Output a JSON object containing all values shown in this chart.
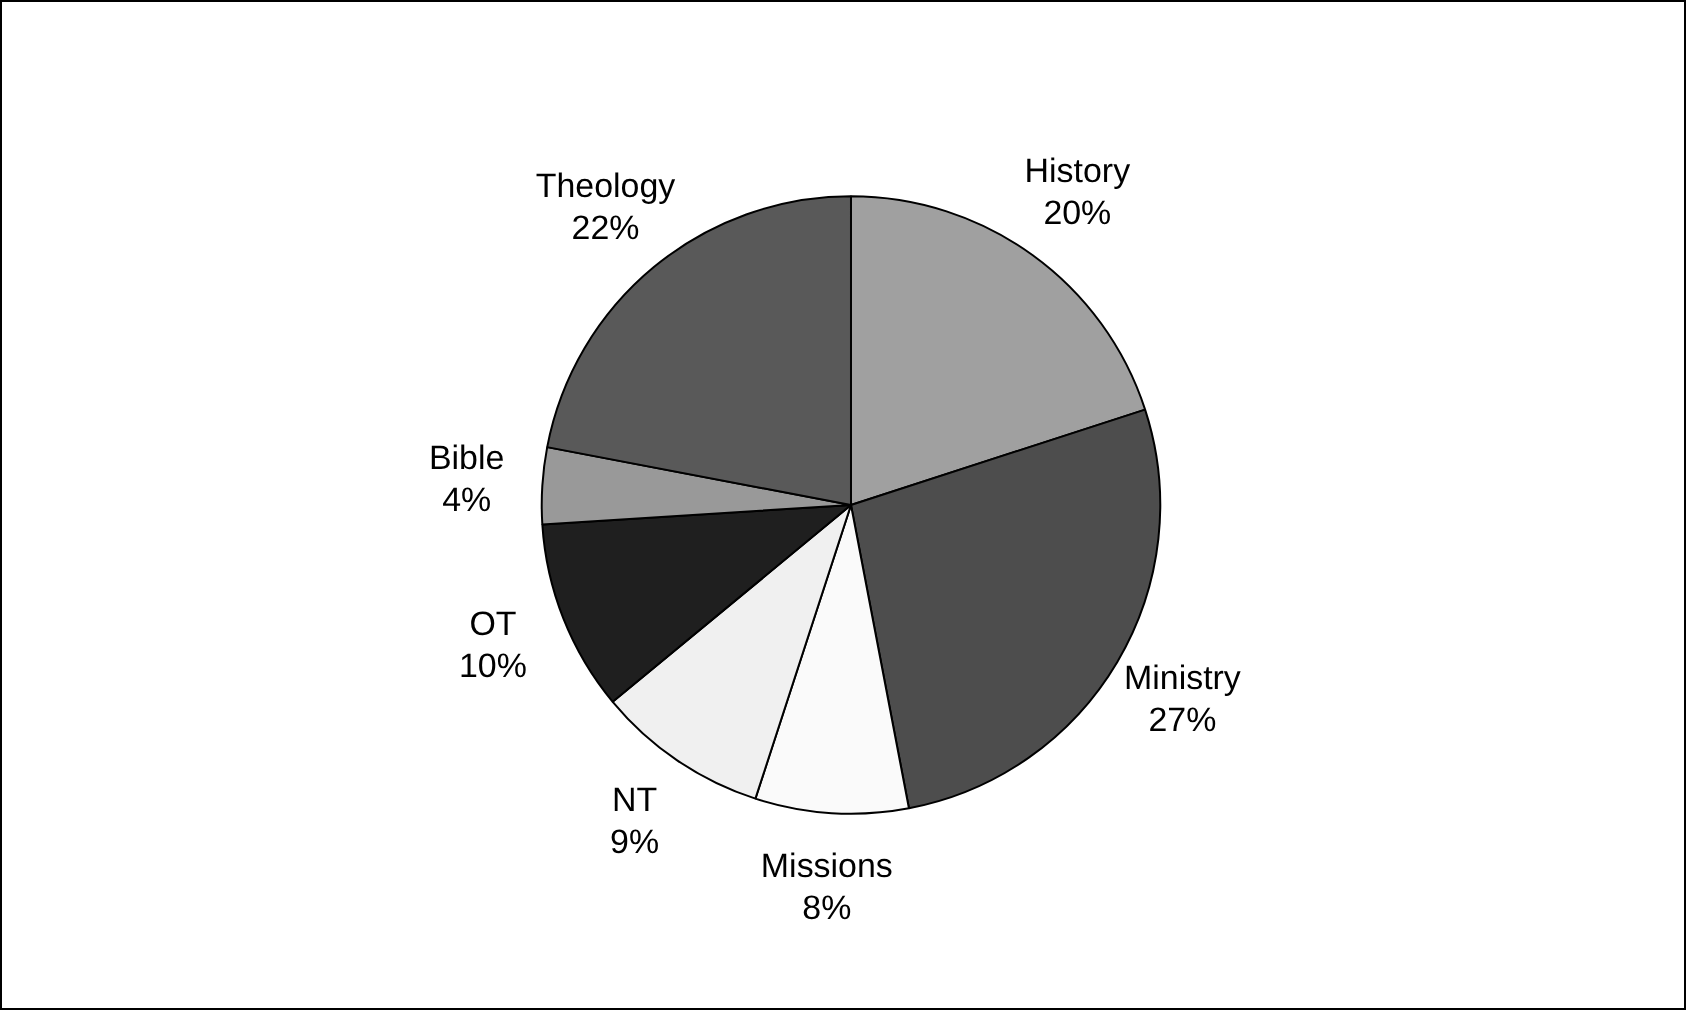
{
  "chart_data": {
    "type": "pie",
    "categories": [
      "History",
      "Ministry",
      "Missions",
      "NT",
      "OT",
      "Bible",
      "Theology"
    ],
    "values": [
      20,
      27,
      8,
      9,
      10,
      4,
      22
    ],
    "value_labels": [
      "20%",
      "27%",
      "8%",
      "9%",
      "10%",
      "4%",
      "22%"
    ],
    "colors": [
      "#a0a0a0",
      "#4d4d4d",
      "#fafafa",
      "#f0f0f0",
      "#1f1f1f",
      "#999999",
      "#595959"
    ],
    "legend": false
  }
}
